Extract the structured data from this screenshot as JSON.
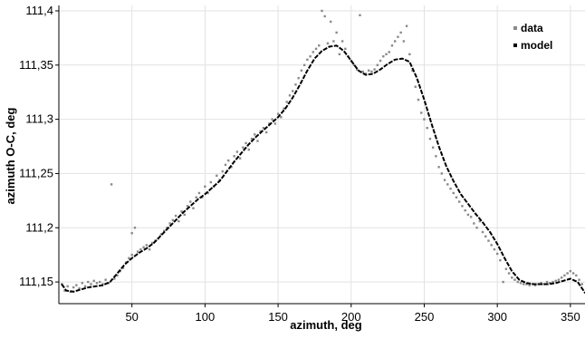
{
  "chart_data": {
    "type": "scatter",
    "title": "",
    "xlabel": "azimuth, deg",
    "ylabel": "azimuth O-C, deg",
    "xlim": [
      0,
      360
    ],
    "ylim": [
      111.13,
      111.405
    ],
    "x_ticks": [
      50,
      100,
      150,
      200,
      250,
      300,
      350
    ],
    "x_tick_labels": [
      "50",
      "100",
      "150",
      "200",
      "250",
      "300",
      "350"
    ],
    "y_ticks": [
      111.15,
      111.2,
      111.25,
      111.3,
      111.35,
      111.4
    ],
    "y_tick_labels": [
      "111,15",
      "111,2",
      "111,25",
      "111,3",
      "111,35",
      "111,4"
    ],
    "grid": true,
    "legend_position": "top-right",
    "colors": {
      "data": "#8a8a8a",
      "model": "#000000"
    },
    "series": [
      {
        "name": "data",
        "style": "points",
        "points": [
          [
            2,
            111.148
          ],
          [
            4,
            111.142
          ],
          [
            6,
            111.146
          ],
          [
            8,
            111.141
          ],
          [
            10,
            111.145
          ],
          [
            12,
            111.147
          ],
          [
            14,
            111.144
          ],
          [
            16,
            111.149
          ],
          [
            18,
            111.146
          ],
          [
            20,
            111.15
          ],
          [
            22,
            111.148
          ],
          [
            24,
            111.151
          ],
          [
            26,
            111.149
          ],
          [
            28,
            111.15
          ],
          [
            30,
            111.148
          ],
          [
            32,
            111.152
          ],
          [
            34,
            111.149
          ],
          [
            36,
            111.24
          ],
          [
            38,
            111.153
          ],
          [
            40,
            111.156
          ],
          [
            42,
            111.16
          ],
          [
            44,
            111.163
          ],
          [
            46,
            111.168
          ],
          [
            48,
            111.172
          ],
          [
            50,
            111.175
          ],
          [
            50,
            111.195
          ],
          [
            52,
            111.2
          ],
          [
            54,
            111.178
          ],
          [
            56,
            111.18
          ],
          [
            58,
            111.182
          ],
          [
            60,
            111.184
          ],
          [
            62,
            111.18
          ],
          [
            64,
            111.186
          ],
          [
            66,
            111.188
          ],
          [
            68,
            111.19
          ],
          [
            70,
            111.194
          ],
          [
            72,
            111.197
          ],
          [
            74,
            111.2
          ],
          [
            76,
            111.204
          ],
          [
            78,
            111.207
          ],
          [
            80,
            111.211
          ],
          [
            82,
            111.206
          ],
          [
            84,
            111.215
          ],
          [
            86,
            111.212
          ],
          [
            88,
            111.22
          ],
          [
            90,
            111.224
          ],
          [
            92,
            111.218
          ],
          [
            94,
            111.228
          ],
          [
            96,
            111.232
          ],
          [
            98,
            111.228
          ],
          [
            100,
            111.238
          ],
          [
            102,
            111.232
          ],
          [
            104,
            111.242
          ],
          [
            106,
            111.238
          ],
          [
            108,
            111.248
          ],
          [
            110,
            111.244
          ],
          [
            112,
            111.252
          ],
          [
            114,
            111.258
          ],
          [
            116,
            111.262
          ],
          [
            118,
            111.256
          ],
          [
            120,
            111.266
          ],
          [
            122,
            111.27
          ],
          [
            124,
            111.264
          ],
          [
            126,
            111.274
          ],
          [
            128,
            111.278
          ],
          [
            130,
            111.272
          ],
          [
            132,
            111.282
          ],
          [
            134,
            111.286
          ],
          [
            136,
            111.28
          ],
          [
            138,
            111.289
          ],
          [
            140,
            111.292
          ],
          [
            142,
            111.288
          ],
          [
            144,
            111.296
          ],
          [
            146,
            111.3
          ],
          [
            148,
            111.296
          ],
          [
            150,
            111.305
          ],
          [
            152,
            111.302
          ],
          [
            154,
            111.31
          ],
          [
            156,
            111.316
          ],
          [
            158,
            111.322
          ],
          [
            160,
            111.326
          ],
          [
            162,
            111.332
          ],
          [
            164,
            111.338
          ],
          [
            166,
            111.345
          ],
          [
            168,
            111.35
          ],
          [
            170,
            111.355
          ],
          [
            172,
            111.358
          ],
          [
            174,
            111.362
          ],
          [
            176,
            111.365
          ],
          [
            178,
            111.368
          ],
          [
            180,
            111.4
          ],
          [
            182,
            111.395
          ],
          [
            184,
            111.37
          ],
          [
            186,
            111.39
          ],
          [
            188,
            111.372
          ],
          [
            190,
            111.38
          ],
          [
            192,
            111.36
          ],
          [
            194,
            111.372
          ],
          [
            196,
            111.365
          ],
          [
            198,
            111.358
          ],
          [
            200,
            111.354
          ],
          [
            202,
            111.35
          ],
          [
            204,
            111.346
          ],
          [
            206,
            111.396
          ],
          [
            208,
            111.344
          ],
          [
            210,
            111.342
          ],
          [
            212,
            111.345
          ],
          [
            214,
            111.344
          ],
          [
            216,
            111.346
          ],
          [
            218,
            111.35
          ],
          [
            220,
            111.354
          ],
          [
            222,
            111.358
          ],
          [
            224,
            111.36
          ],
          [
            226,
            111.362
          ],
          [
            228,
            111.368
          ],
          [
            230,
            111.372
          ],
          [
            232,
            111.376
          ],
          [
            234,
            111.38
          ],
          [
            236,
            111.372
          ],
          [
            238,
            111.386
          ],
          [
            240,
            111.36
          ],
          [
            242,
            111.345
          ],
          [
            244,
            111.33
          ],
          [
            246,
            111.318
          ],
          [
            248,
            111.306
          ],
          [
            250,
            111.3
          ],
          [
            252,
            111.292
          ],
          [
            254,
            111.282
          ],
          [
            256,
            111.274
          ],
          [
            258,
            111.266
          ],
          [
            260,
            111.256
          ],
          [
            262,
            111.25
          ],
          [
            264,
            111.244
          ],
          [
            266,
            111.24
          ],
          [
            268,
            111.236
          ],
          [
            270,
            111.232
          ],
          [
            272,
            111.228
          ],
          [
            274,
            111.224
          ],
          [
            276,
            111.22
          ],
          [
            278,
            111.216
          ],
          [
            280,
            111.212
          ],
          [
            282,
            111.21
          ],
          [
            284,
            111.204
          ],
          [
            286,
            111.2
          ],
          [
            288,
            111.206
          ],
          [
            290,
            111.196
          ],
          [
            292,
            111.192
          ],
          [
            294,
            111.188
          ],
          [
            296,
            111.184
          ],
          [
            298,
            111.18
          ],
          [
            300,
            111.176
          ],
          [
            302,
            111.17
          ],
          [
            304,
            111.15
          ],
          [
            306,
            111.162
          ],
          [
            308,
            111.158
          ],
          [
            310,
            111.154
          ],
          [
            312,
            111.152
          ],
          [
            314,
            111.15
          ],
          [
            316,
            111.149
          ],
          [
            318,
            111.148
          ],
          [
            320,
            111.148
          ],
          [
            322,
            111.147
          ],
          [
            324,
            111.148
          ],
          [
            326,
            111.147
          ],
          [
            328,
            111.148
          ],
          [
            330,
            111.149
          ],
          [
            332,
            111.148
          ],
          [
            334,
            111.15
          ],
          [
            336,
            111.149
          ],
          [
            338,
            111.15
          ],
          [
            340,
            111.151
          ],
          [
            342,
            111.152
          ],
          [
            344,
            111.154
          ],
          [
            346,
            111.156
          ],
          [
            348,
            111.158
          ],
          [
            350,
            111.16
          ],
          [
            352,
            111.158
          ],
          [
            354,
            111.156
          ],
          [
            356,
            111.152
          ],
          [
            358,
            111.148
          ],
          [
            360,
            111.14
          ]
        ]
      },
      {
        "name": "model",
        "style": "line",
        "points": [
          [
            2,
            111.148
          ],
          [
            5,
            111.142
          ],
          [
            10,
            111.141
          ],
          [
            15,
            111.143
          ],
          [
            20,
            111.145
          ],
          [
            25,
            111.146
          ],
          [
            30,
            111.147
          ],
          [
            35,
            111.15
          ],
          [
            40,
            111.158
          ],
          [
            45,
            111.166
          ],
          [
            50,
            111.172
          ],
          [
            55,
            111.177
          ],
          [
            60,
            111.181
          ],
          [
            65,
            111.186
          ],
          [
            70,
            111.193
          ],
          [
            75,
            111.2
          ],
          [
            80,
            111.207
          ],
          [
            85,
            111.214
          ],
          [
            90,
            111.22
          ],
          [
            95,
            111.226
          ],
          [
            100,
            111.231
          ],
          [
            105,
            111.237
          ],
          [
            110,
            111.243
          ],
          [
            115,
            111.252
          ],
          [
            120,
            111.261
          ],
          [
            125,
            111.269
          ],
          [
            130,
            111.277
          ],
          [
            135,
            111.284
          ],
          [
            140,
            111.29
          ],
          [
            145,
            111.296
          ],
          [
            150,
            111.302
          ],
          [
            155,
            111.31
          ],
          [
            160,
            111.32
          ],
          [
            165,
            111.332
          ],
          [
            170,
            111.345
          ],
          [
            175,
            111.356
          ],
          [
            180,
            111.363
          ],
          [
            185,
            111.367
          ],
          [
            190,
            111.368
          ],
          [
            195,
            111.363
          ],
          [
            200,
            111.354
          ],
          [
            205,
            111.345
          ],
          [
            210,
            111.341
          ],
          [
            215,
            111.342
          ],
          [
            220,
            111.346
          ],
          [
            225,
            111.351
          ],
          [
            230,
            111.355
          ],
          [
            235,
            111.356
          ],
          [
            240,
            111.353
          ],
          [
            245,
            111.338
          ],
          [
            250,
            111.318
          ],
          [
            255,
            111.296
          ],
          [
            260,
            111.275
          ],
          [
            265,
            111.257
          ],
          [
            270,
            111.243
          ],
          [
            275,
            111.231
          ],
          [
            280,
            111.222
          ],
          [
            285,
            111.213
          ],
          [
            290,
            111.205
          ],
          [
            295,
            111.196
          ],
          [
            300,
            111.185
          ],
          [
            305,
            111.172
          ],
          [
            310,
            111.16
          ],
          [
            315,
            111.152
          ],
          [
            320,
            111.149
          ],
          [
            325,
            111.148
          ],
          [
            330,
            111.148
          ],
          [
            335,
            111.148
          ],
          [
            340,
            111.149
          ],
          [
            345,
            111.151
          ],
          [
            350,
            111.153
          ],
          [
            355,
            111.15
          ],
          [
            360,
            111.14
          ]
        ]
      }
    ]
  }
}
